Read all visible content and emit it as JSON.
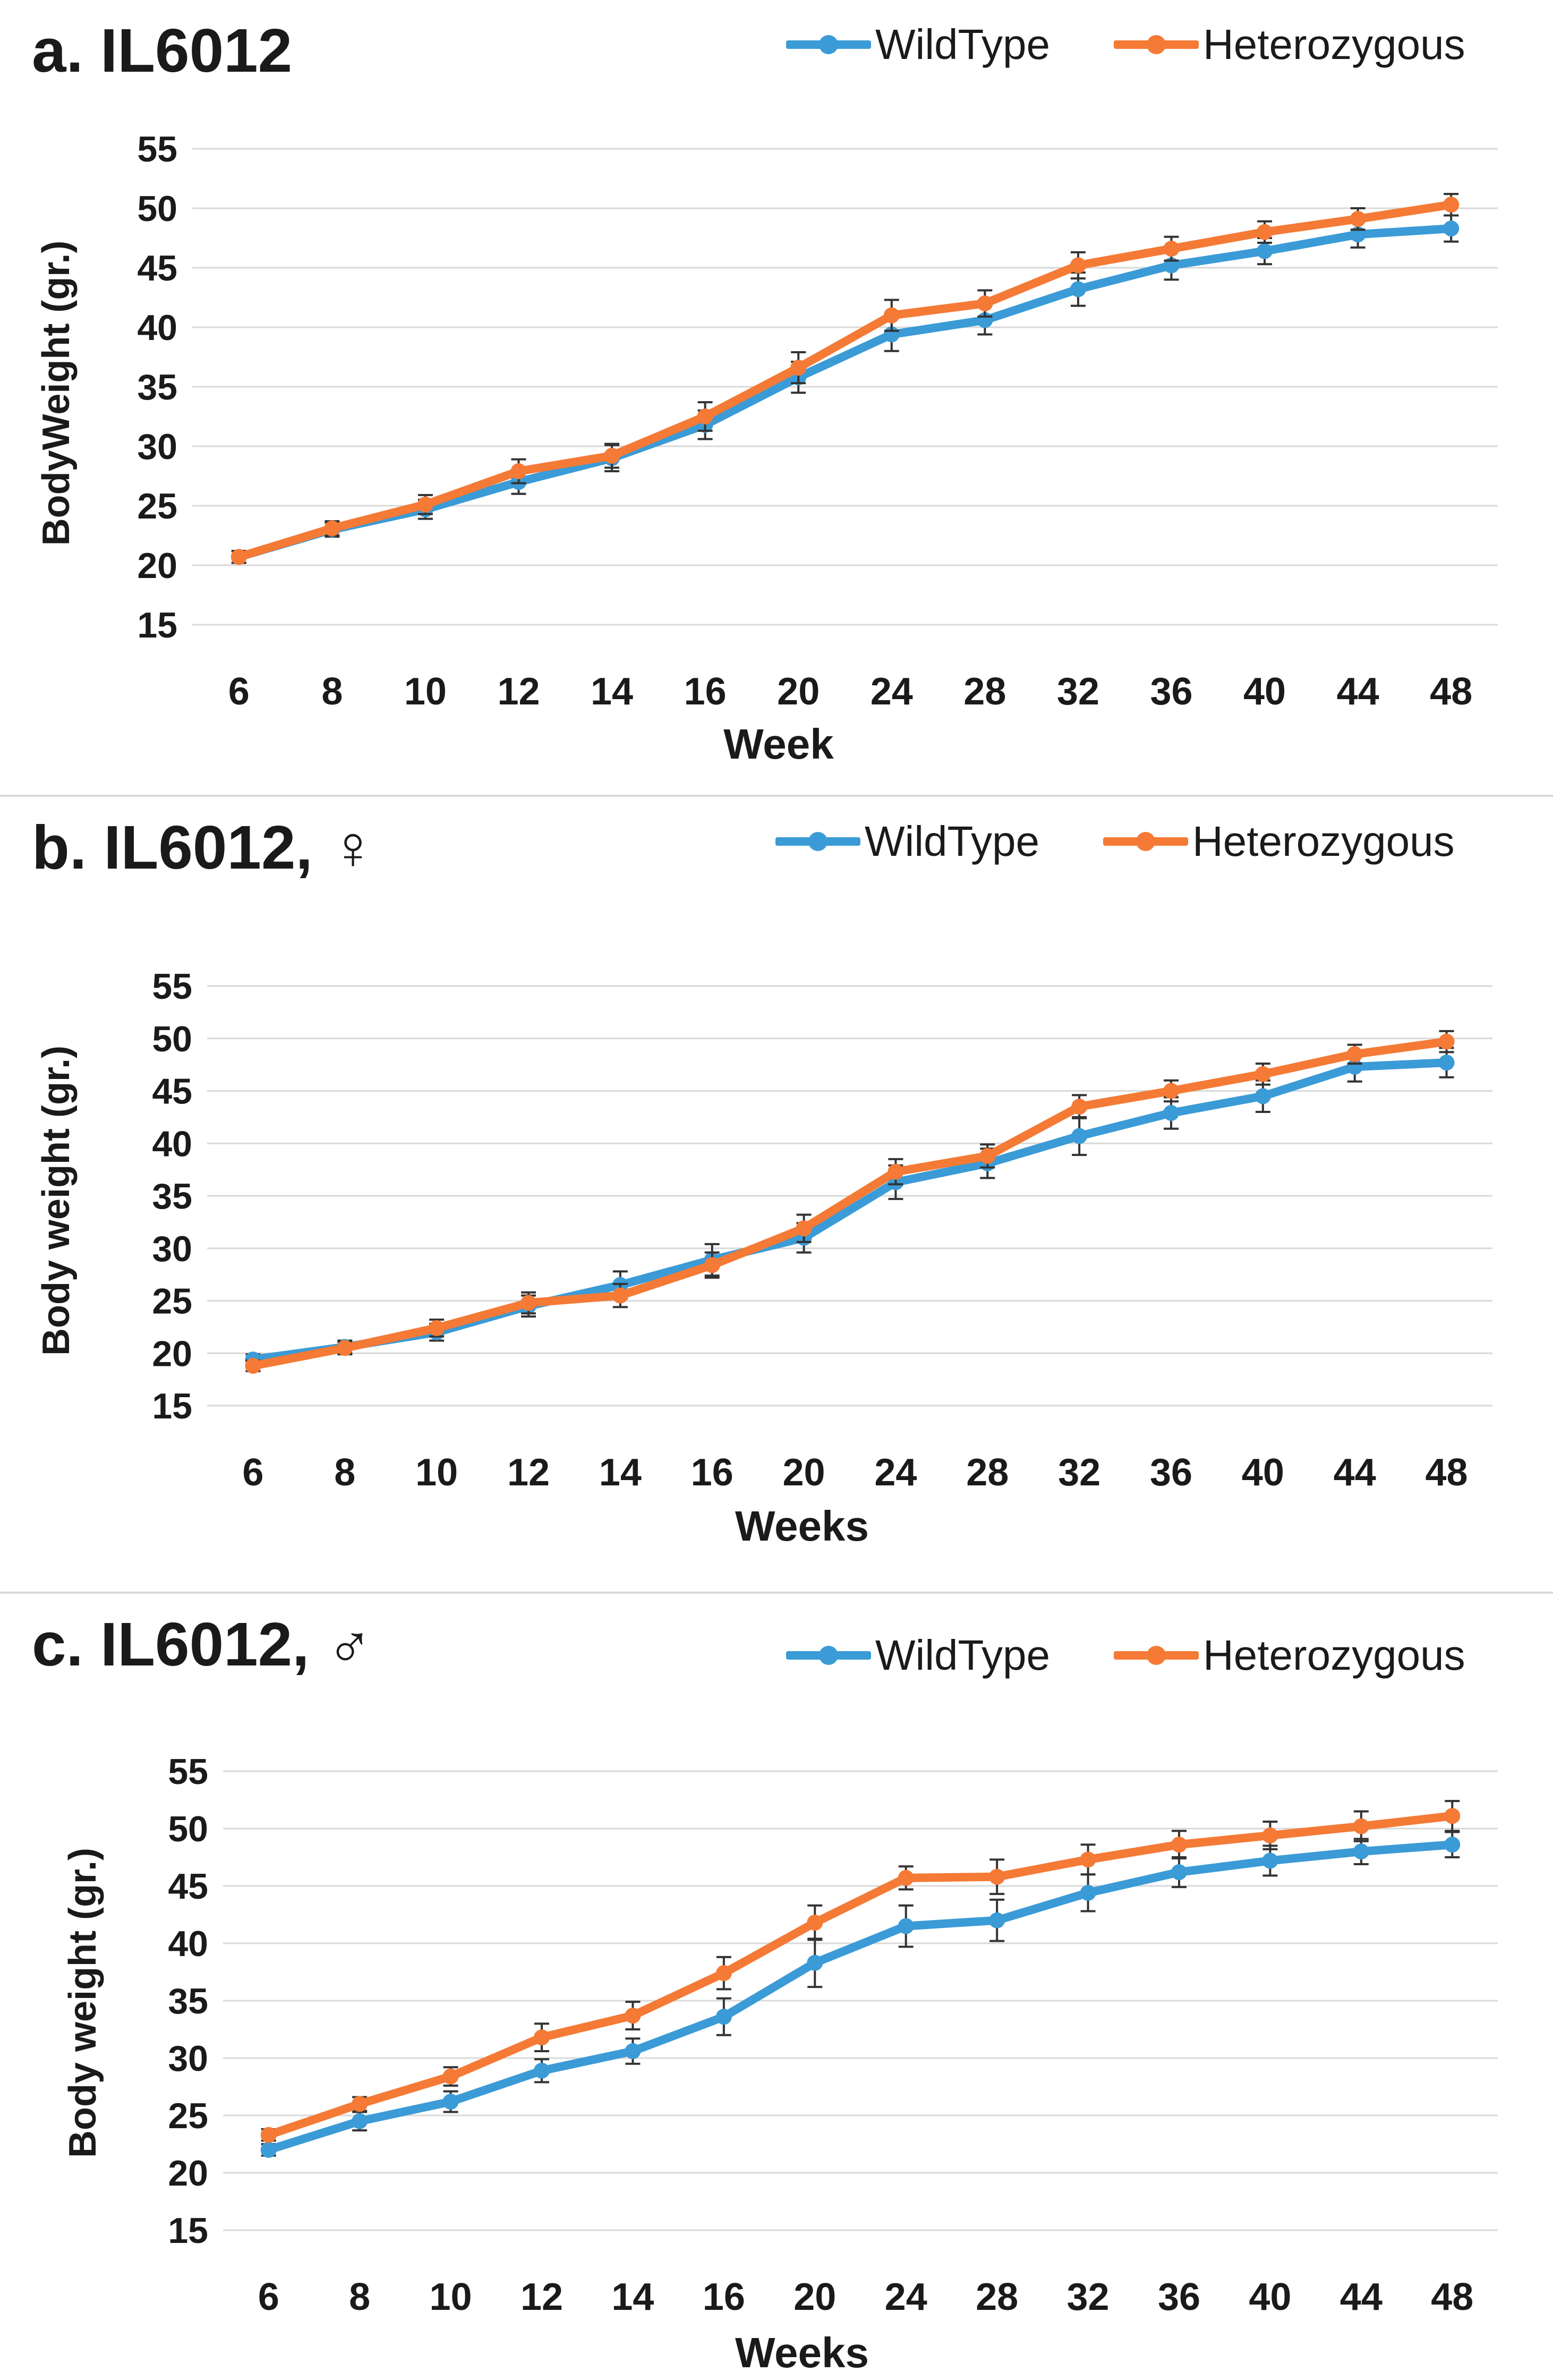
{
  "colors": {
    "wild": "#3b9bd6",
    "het": "#f47a36",
    "grid": "#d9d9d9",
    "error": "#333333"
  },
  "chart_data": [
    {
      "type": "line",
      "title": "a. IL6012",
      "xlabel": "Week",
      "ylabel": "BodyWeight (gr.)",
      "categories": [
        "6",
        "8",
        "10",
        "12",
        "14",
        "16",
        "20",
        "24",
        "28",
        "32",
        "36",
        "40",
        "44",
        "48"
      ],
      "ylim": [
        15,
        55
      ],
      "yticks": [
        15,
        20,
        25,
        30,
        35,
        40,
        45,
        50,
        55
      ],
      "series": [
        {
          "name": "WildType",
          "values": [
            20.7,
            23.0,
            24.7,
            27.0,
            29.0,
            31.8,
            35.8,
            39.4,
            40.6,
            43.2,
            45.2,
            46.4,
            47.8,
            48.3
          ],
          "error": [
            0.5,
            0.6,
            0.8,
            1.0,
            1.1,
            1.2,
            1.3,
            1.4,
            1.2,
            1.4,
            1.2,
            1.1,
            1.1,
            1.1
          ]
        },
        {
          "name": "Heterozygous",
          "values": [
            20.7,
            23.1,
            25.1,
            27.9,
            29.2,
            32.5,
            36.6,
            41.0,
            42.0,
            45.2,
            46.6,
            48.0,
            49.1,
            50.3
          ],
          "error": [
            0.5,
            0.6,
            0.8,
            1.0,
            1.0,
            1.2,
            1.3,
            1.3,
            1.1,
            1.1,
            1.0,
            0.9,
            0.9,
            0.9
          ]
        }
      ]
    },
    {
      "type": "line",
      "title": "b. IL6012, ♀",
      "xlabel": "Weeks",
      "ylabel": "Body weight (gr.)",
      "categories": [
        "6",
        "8",
        "10",
        "12",
        "14",
        "16",
        "20",
        "24",
        "28",
        "32",
        "36",
        "40",
        "44",
        "48"
      ],
      "ylim": [
        15,
        55
      ],
      "yticks": [
        15,
        20,
        25,
        30,
        35,
        40,
        45,
        50,
        55
      ],
      "series": [
        {
          "name": "WildType",
          "values": [
            19.4,
            20.6,
            22.0,
            24.5,
            26.5,
            28.9,
            31.0,
            36.3,
            38.1,
            40.7,
            42.9,
            44.5,
            47.3,
            47.7
          ],
          "error": [
            0.5,
            0.6,
            0.8,
            1.0,
            1.3,
            1.5,
            1.4,
            1.6,
            1.4,
            1.8,
            1.5,
            1.5,
            1.4,
            1.4
          ]
        },
        {
          "name": "Heterozygous",
          "values": [
            18.8,
            20.5,
            22.4,
            24.8,
            25.5,
            28.4,
            31.9,
            37.3,
            38.8,
            43.5,
            45.0,
            46.6,
            48.5,
            49.7
          ],
          "error": [
            0.5,
            0.6,
            0.8,
            1.0,
            1.1,
            1.2,
            1.3,
            1.2,
            1.1,
            1.1,
            1.0,
            1.0,
            0.9,
            1.0
          ]
        }
      ]
    },
    {
      "type": "line",
      "title": "c. IL6012, ♂",
      "xlabel": "Weeks",
      "ylabel": "Body weight (gr.)",
      "categories": [
        "6",
        "8",
        "10",
        "12",
        "14",
        "16",
        "20",
        "24",
        "28",
        "32",
        "36",
        "40",
        "44",
        "48"
      ],
      "ylim": [
        15,
        55
      ],
      "yticks": [
        15,
        20,
        25,
        30,
        35,
        40,
        45,
        50,
        55
      ],
      "series": [
        {
          "name": "WildType",
          "values": [
            22.0,
            24.5,
            26.2,
            28.9,
            30.6,
            33.6,
            38.3,
            41.5,
            42.0,
            44.4,
            46.2,
            47.2,
            48.0,
            48.6
          ],
          "error": [
            0.5,
            0.8,
            0.9,
            1.0,
            1.1,
            1.6,
            2.1,
            1.8,
            1.8,
            1.6,
            1.3,
            1.3,
            1.1,
            1.1
          ]
        },
        {
          "name": "Heterozygous",
          "values": [
            23.3,
            26.0,
            28.4,
            31.8,
            33.7,
            37.4,
            41.8,
            45.7,
            45.8,
            47.3,
            48.6,
            49.4,
            50.2,
            51.1
          ],
          "error": [
            0.5,
            0.6,
            0.8,
            1.2,
            1.2,
            1.4,
            1.5,
            1.0,
            1.5,
            1.3,
            1.2,
            1.2,
            1.3,
            1.3
          ]
        }
      ]
    }
  ]
}
